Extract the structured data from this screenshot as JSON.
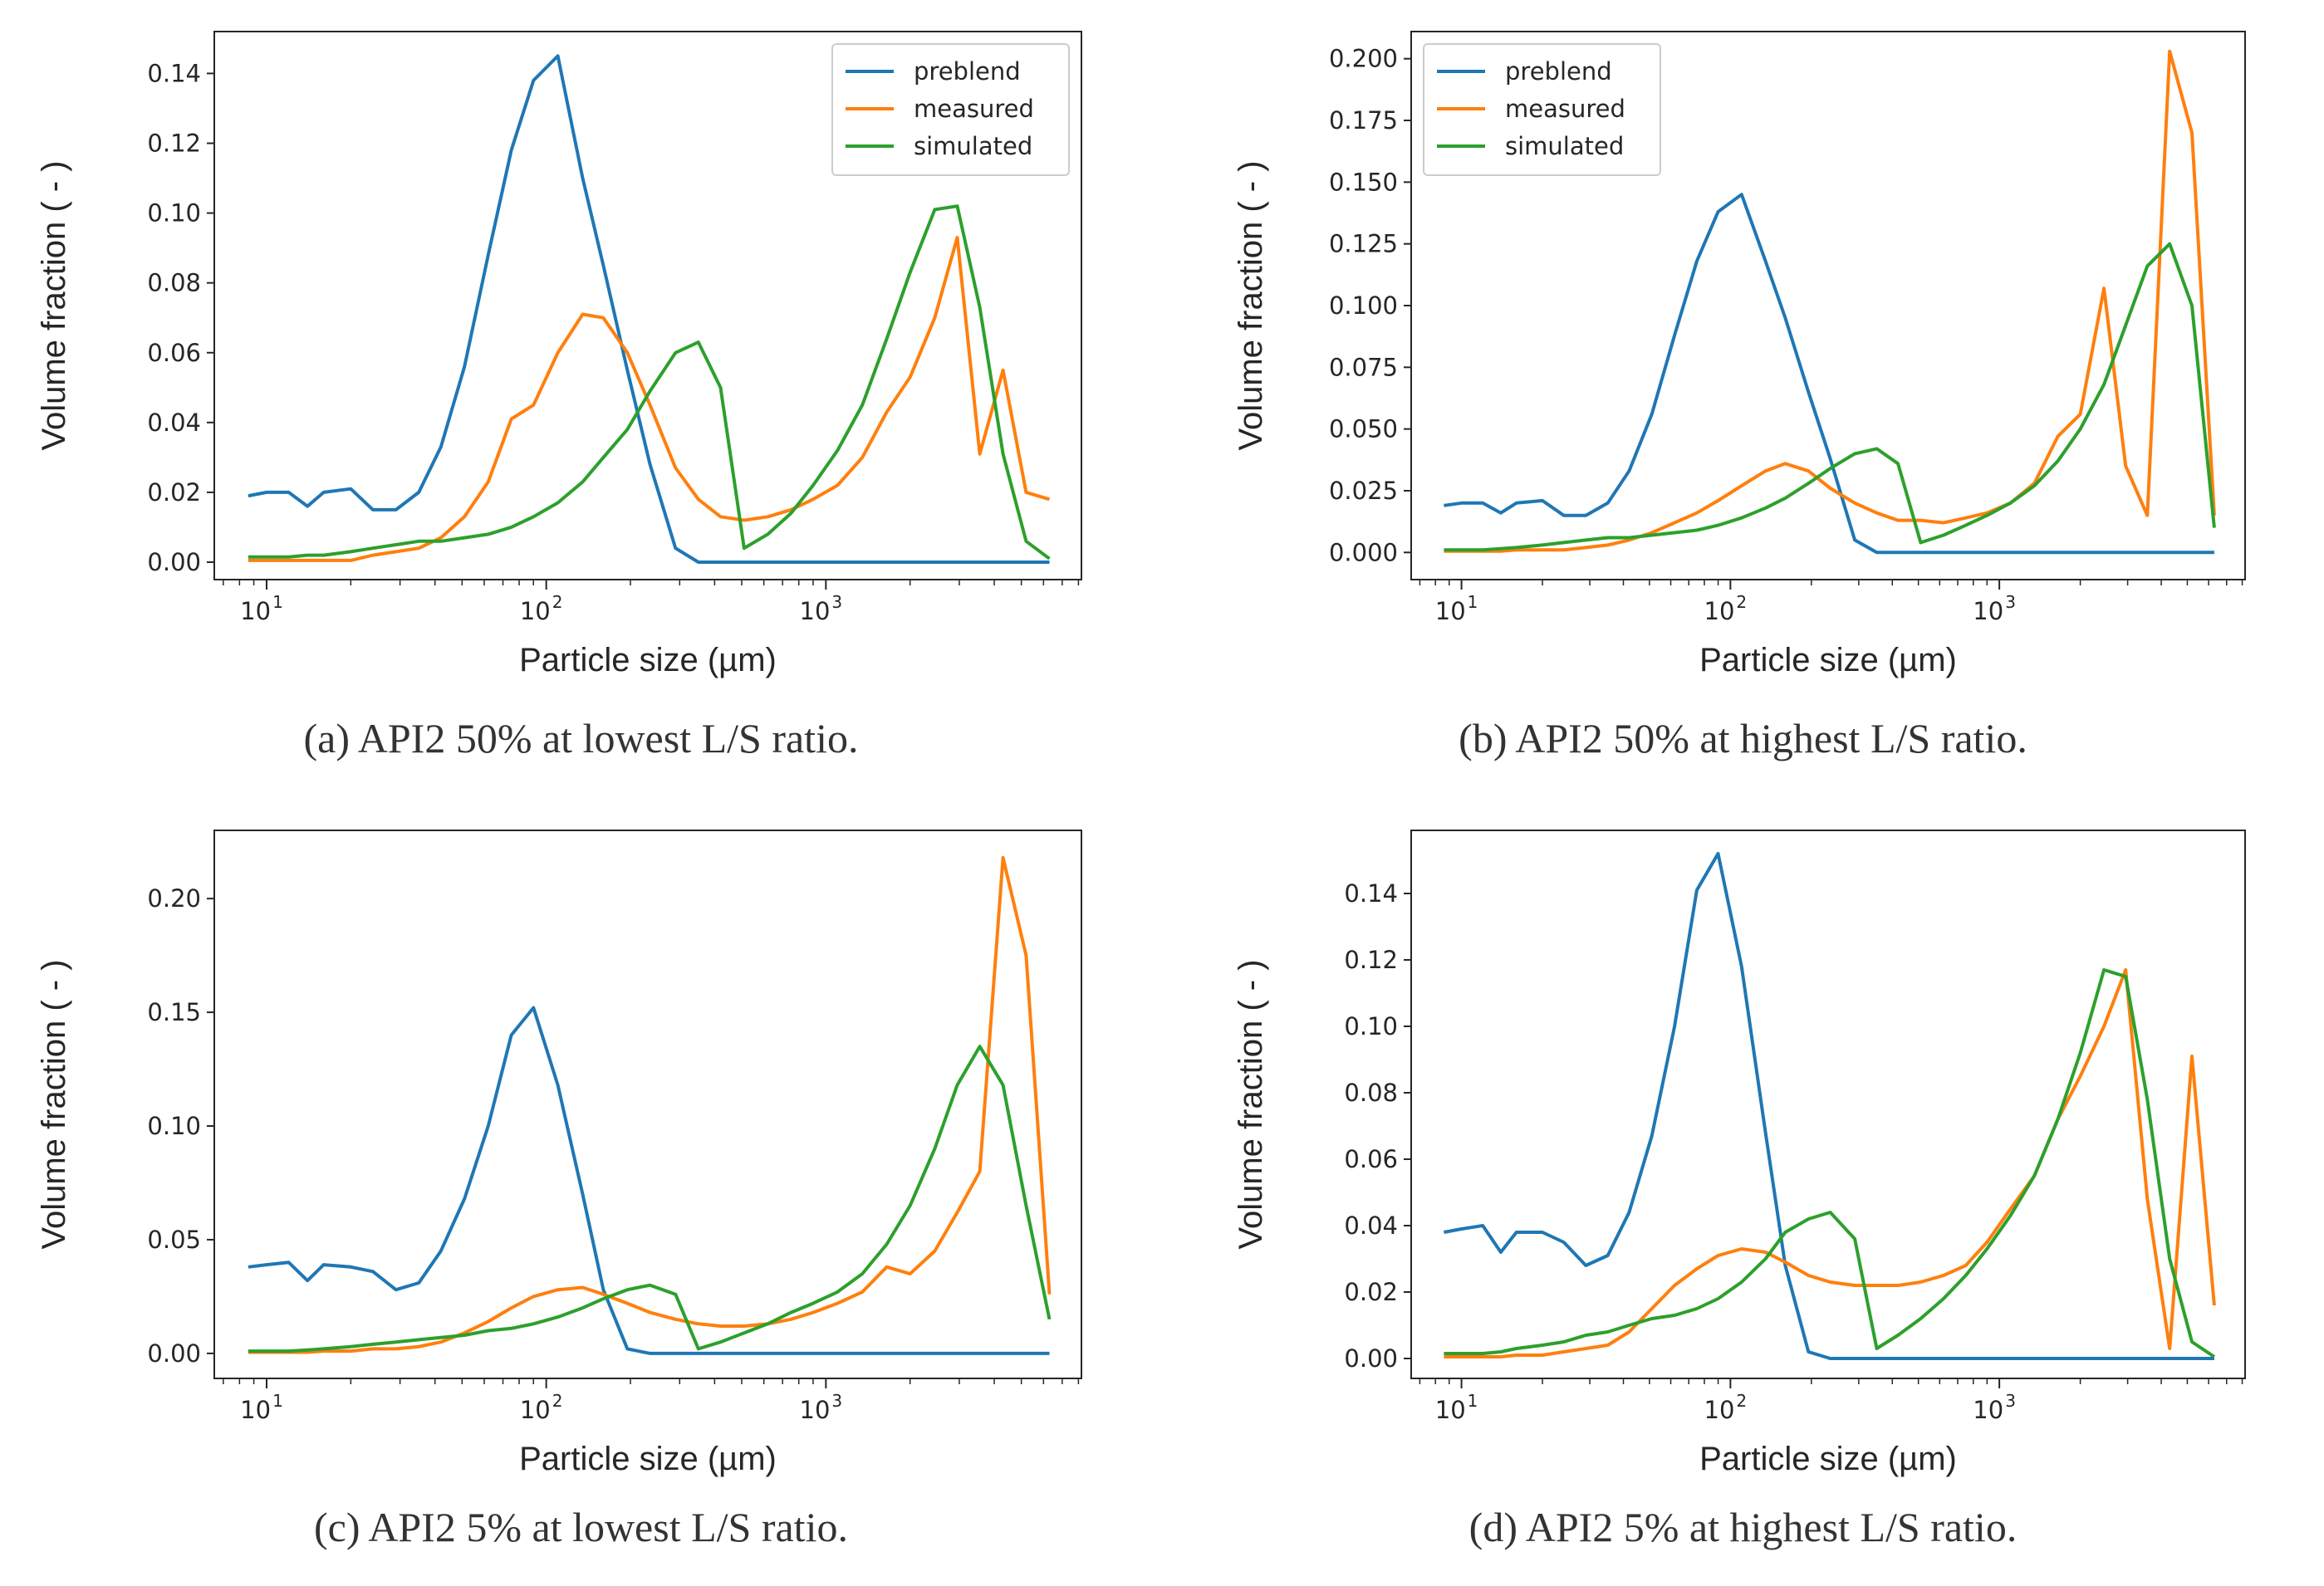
{
  "figure": {
    "captions": [
      "(a) API2 50% at lowest L/S ratio.",
      "(b) API2 50% at highest L/S ratio.",
      "(c) API2 5% at lowest L/S ratio.",
      "(d) API2 5% at highest L/S ratio."
    ]
  },
  "colors": {
    "preblend": "#1f77b4",
    "measured": "#ff7f0e",
    "simulated": "#2ca02c"
  },
  "chart_data": [
    {
      "type": "line",
      "caption": "(a) API2 50% at lowest L/S ratio.",
      "xlabel": "Particle size (µm)",
      "ylabel": "Volume fraction ( - )",
      "xscale": "log",
      "xlim": [
        6.5,
        8200
      ],
      "ylim": [
        -0.005,
        0.152
      ],
      "xticks": [
        {
          "value": 10,
          "label": "10",
          "exp": "1"
        },
        {
          "value": 100,
          "label": "10",
          "exp": "2"
        },
        {
          "value": 1000,
          "label": "10",
          "exp": "3"
        }
      ],
      "yticks": [
        {
          "value": 0,
          "label": "0.00"
        },
        {
          "value": 0.02,
          "label": "0.02"
        },
        {
          "value": 0.04,
          "label": "0.04"
        },
        {
          "value": 0.06,
          "label": "0.06"
        },
        {
          "value": 0.08,
          "label": "0.08"
        },
        {
          "value": 0.1,
          "label": "0.10"
        },
        {
          "value": 0.12,
          "label": "0.12"
        },
        {
          "value": 0.14,
          "label": "0.14"
        }
      ],
      "legend": {
        "show": true,
        "position": "top-right"
      },
      "x": [
        8.6,
        10.0,
        12.0,
        14.0,
        16.0,
        20.0,
        24.0,
        29.0,
        35.0,
        42.0,
        51.0,
        62.0,
        75.0,
        90.0,
        110.0,
        135.0,
        160.0,
        195.0,
        235.0,
        290.0,
        350.0,
        420.0,
        510.0,
        620.0,
        750.0,
        900.0,
        1100.0,
        1350.0,
        1650.0,
        2000.0,
        2450.0,
        2950.0,
        3550.0,
        4300.0,
        5200.0,
        6300.0
      ],
      "series": [
        {
          "name": "preblend",
          "color": "#1f77b4",
          "values": [
            0.019,
            0.02,
            0.02,
            0.016,
            0.02,
            0.021,
            0.015,
            0.015,
            0.02,
            0.033,
            0.056,
            0.088,
            0.118,
            0.138,
            0.145,
            0.11,
            0.085,
            0.055,
            0.028,
            0.004,
            0.0,
            0.0,
            0.0,
            0.0,
            0.0,
            0.0,
            0.0,
            0.0,
            0.0,
            0.0,
            0.0,
            0.0,
            0.0,
            0.0,
            0.0,
            0.0
          ]
        },
        {
          "name": "measured",
          "color": "#ff7f0e",
          "values": [
            0.0005,
            0.0005,
            0.0005,
            0.0005,
            0.0005,
            0.0005,
            0.002,
            0.003,
            0.004,
            0.007,
            0.013,
            0.023,
            0.041,
            0.045,
            0.06,
            0.071,
            0.07,
            0.06,
            0.045,
            0.027,
            0.018,
            0.013,
            0.012,
            0.013,
            0.015,
            0.018,
            0.022,
            0.03,
            0.043,
            0.053,
            0.07,
            0.093,
            0.031,
            0.055,
            0.02,
            0.018
          ]
        },
        {
          "name": "simulated",
          "color": "#2ca02c",
          "values": [
            0.0015,
            0.0015,
            0.0015,
            0.002,
            0.002,
            0.003,
            0.004,
            0.005,
            0.006,
            0.006,
            0.007,
            0.008,
            0.01,
            0.013,
            0.017,
            0.023,
            0.03,
            0.038,
            0.049,
            0.06,
            0.063,
            0.05,
            0.004,
            0.008,
            0.014,
            0.022,
            0.032,
            0.045,
            0.064,
            0.083,
            0.101,
            0.102,
            0.073,
            0.031,
            0.006,
            0.001
          ]
        }
      ]
    },
    {
      "type": "line",
      "caption": "(b) API2 50% at highest L/S ratio.",
      "xlabel": "Particle size (µm)",
      "ylabel": "Volume fraction ( - )",
      "xscale": "log",
      "xlim": [
        6.5,
        8200
      ],
      "ylim": [
        -0.011,
        0.211
      ],
      "xticks": [
        {
          "value": 10,
          "label": "10",
          "exp": "1"
        },
        {
          "value": 100,
          "label": "10",
          "exp": "2"
        },
        {
          "value": 1000,
          "label": "10",
          "exp": "3"
        }
      ],
      "yticks": [
        {
          "value": 0,
          "label": "0.000"
        },
        {
          "value": 0.025,
          "label": "0.025"
        },
        {
          "value": 0.05,
          "label": "0.050"
        },
        {
          "value": 0.075,
          "label": "0.075"
        },
        {
          "value": 0.1,
          "label": "0.100"
        },
        {
          "value": 0.125,
          "label": "0.125"
        },
        {
          "value": 0.15,
          "label": "0.150"
        },
        {
          "value": 0.175,
          "label": "0.175"
        },
        {
          "value": 0.2,
          "label": "0.200"
        }
      ],
      "legend": {
        "show": true,
        "position": "top-left"
      },
      "x": [
        8.6,
        10.0,
        12.0,
        14.0,
        16.0,
        20.0,
        24.0,
        29.0,
        35.0,
        42.0,
        51.0,
        62.0,
        75.0,
        90.0,
        110.0,
        135.0,
        160.0,
        195.0,
        235.0,
        290.0,
        350.0,
        420.0,
        510.0,
        620.0,
        750.0,
        900.0,
        1100.0,
        1350.0,
        1650.0,
        2000.0,
        2450.0,
        2950.0,
        3550.0,
        4300.0,
        5200.0,
        6300.0
      ],
      "series": [
        {
          "name": "preblend",
          "color": "#1f77b4",
          "values": [
            0.019,
            0.02,
            0.02,
            0.016,
            0.02,
            0.021,
            0.015,
            0.015,
            0.02,
            0.033,
            0.056,
            0.088,
            0.118,
            0.138,
            0.145,
            0.118,
            0.095,
            0.065,
            0.038,
            0.005,
            0.0,
            0.0,
            0.0,
            0.0,
            0.0,
            0.0,
            0.0,
            0.0,
            0.0,
            0.0,
            0.0,
            0.0,
            0.0,
            0.0,
            0.0,
            0.0
          ]
        },
        {
          "name": "measured",
          "color": "#ff7f0e",
          "values": [
            0.0005,
            0.0005,
            0.0005,
            0.0005,
            0.001,
            0.001,
            0.001,
            0.002,
            0.003,
            0.005,
            0.008,
            0.012,
            0.016,
            0.021,
            0.027,
            0.033,
            0.036,
            0.033,
            0.026,
            0.02,
            0.016,
            0.013,
            0.013,
            0.012,
            0.014,
            0.016,
            0.02,
            0.028,
            0.047,
            0.056,
            0.107,
            0.035,
            0.015,
            0.203,
            0.17,
            0.015
          ]
        },
        {
          "name": "simulated",
          "color": "#2ca02c",
          "values": [
            0.001,
            0.001,
            0.001,
            0.0015,
            0.002,
            0.003,
            0.004,
            0.005,
            0.006,
            0.006,
            0.007,
            0.008,
            0.009,
            0.011,
            0.014,
            0.018,
            0.022,
            0.028,
            0.034,
            0.04,
            0.042,
            0.036,
            0.004,
            0.007,
            0.011,
            0.015,
            0.02,
            0.027,
            0.037,
            0.05,
            0.068,
            0.092,
            0.116,
            0.125,
            0.1,
            0.01
          ]
        }
      ]
    },
    {
      "type": "line",
      "caption": "(c) API2 5% at lowest L/S ratio.",
      "xlabel": "Particle size (µm)",
      "ylabel": "Volume fraction ( - )",
      "xscale": "log",
      "xlim": [
        6.5,
        8200
      ],
      "ylim": [
        -0.011,
        0.23
      ],
      "xticks": [
        {
          "value": 10,
          "label": "10",
          "exp": "1"
        },
        {
          "value": 100,
          "label": "10",
          "exp": "2"
        },
        {
          "value": 1000,
          "label": "10",
          "exp": "3"
        }
      ],
      "yticks": [
        {
          "value": 0,
          "label": "0.00"
        },
        {
          "value": 0.05,
          "label": "0.05"
        },
        {
          "value": 0.1,
          "label": "0.10"
        },
        {
          "value": 0.15,
          "label": "0.15"
        },
        {
          "value": 0.2,
          "label": "0.20"
        }
      ],
      "legend": {
        "show": false
      },
      "x": [
        8.6,
        10.0,
        12.0,
        14.0,
        16.0,
        20.0,
        24.0,
        29.0,
        35.0,
        42.0,
        51.0,
        62.0,
        75.0,
        90.0,
        110.0,
        135.0,
        160.0,
        195.0,
        235.0,
        290.0,
        350.0,
        420.0,
        510.0,
        620.0,
        750.0,
        900.0,
        1100.0,
        1350.0,
        1650.0,
        2000.0,
        2450.0,
        2950.0,
        3550.0,
        4300.0,
        5200.0,
        6300.0
      ],
      "series": [
        {
          "name": "preblend",
          "color": "#1f77b4",
          "values": [
            0.038,
            0.039,
            0.04,
            0.032,
            0.039,
            0.038,
            0.036,
            0.028,
            0.031,
            0.045,
            0.068,
            0.1,
            0.14,
            0.152,
            0.118,
            0.07,
            0.028,
            0.002,
            0.0,
            0.0,
            0.0,
            0.0,
            0.0,
            0.0,
            0.0,
            0.0,
            0.0,
            0.0,
            0.0,
            0.0,
            0.0,
            0.0,
            0.0,
            0.0,
            0.0,
            0.0
          ]
        },
        {
          "name": "measured",
          "color": "#ff7f0e",
          "values": [
            0.0005,
            0.0005,
            0.0005,
            0.0005,
            0.001,
            0.001,
            0.002,
            0.002,
            0.003,
            0.005,
            0.009,
            0.014,
            0.02,
            0.025,
            0.028,
            0.029,
            0.026,
            0.022,
            0.018,
            0.015,
            0.013,
            0.012,
            0.012,
            0.013,
            0.015,
            0.018,
            0.022,
            0.027,
            0.038,
            0.035,
            0.045,
            0.062,
            0.08,
            0.218,
            0.175,
            0.026
          ]
        },
        {
          "name": "simulated",
          "color": "#2ca02c",
          "values": [
            0.001,
            0.001,
            0.001,
            0.0015,
            0.002,
            0.003,
            0.004,
            0.005,
            0.006,
            0.007,
            0.008,
            0.01,
            0.011,
            0.013,
            0.016,
            0.02,
            0.024,
            0.028,
            0.03,
            0.026,
            0.002,
            0.005,
            0.009,
            0.013,
            0.018,
            0.022,
            0.027,
            0.035,
            0.048,
            0.065,
            0.09,
            0.118,
            0.135,
            0.118,
            0.065,
            0.015
          ]
        }
      ]
    },
    {
      "type": "line",
      "caption": "(d) API2 5% at highest L/S ratio.",
      "xlabel": "Particle size (µm)",
      "ylabel": "Volume fraction ( - )",
      "xscale": "log",
      "xlim": [
        6.5,
        8200
      ],
      "ylim": [
        -0.006,
        0.159
      ],
      "xticks": [
        {
          "value": 10,
          "label": "10",
          "exp": "1"
        },
        {
          "value": 100,
          "label": "10",
          "exp": "2"
        },
        {
          "value": 1000,
          "label": "10",
          "exp": "3"
        }
      ],
      "yticks": [
        {
          "value": 0,
          "label": "0.00"
        },
        {
          "value": 0.02,
          "label": "0.02"
        },
        {
          "value": 0.04,
          "label": "0.04"
        },
        {
          "value": 0.06,
          "label": "0.06"
        },
        {
          "value": 0.08,
          "label": "0.08"
        },
        {
          "value": 0.1,
          "label": "0.10"
        },
        {
          "value": 0.12,
          "label": "0.12"
        },
        {
          "value": 0.14,
          "label": "0.14"
        }
      ],
      "legend": {
        "show": false
      },
      "x": [
        8.6,
        10.0,
        12.0,
        14.0,
        16.0,
        20.0,
        24.0,
        29.0,
        35.0,
        42.0,
        51.0,
        62.0,
        75.0,
        90.0,
        110.0,
        135.0,
        160.0,
        195.0,
        235.0,
        290.0,
        350.0,
        420.0,
        510.0,
        620.0,
        750.0,
        900.0,
        1100.0,
        1350.0,
        1650.0,
        2000.0,
        2450.0,
        2950.0,
        3550.0,
        4300.0,
        5200.0,
        6300.0
      ],
      "series": [
        {
          "name": "preblend",
          "color": "#1f77b4",
          "values": [
            0.038,
            0.039,
            0.04,
            0.032,
            0.038,
            0.038,
            0.035,
            0.028,
            0.031,
            0.044,
            0.067,
            0.1,
            0.141,
            0.152,
            0.118,
            0.068,
            0.028,
            0.002,
            0.0,
            0.0,
            0.0,
            0.0,
            0.0,
            0.0,
            0.0,
            0.0,
            0.0,
            0.0,
            0.0,
            0.0,
            0.0,
            0.0,
            0.0,
            0.0,
            0.0,
            0.0
          ]
        },
        {
          "name": "measured",
          "color": "#ff7f0e",
          "values": [
            0.0005,
            0.0005,
            0.0005,
            0.0005,
            0.001,
            0.001,
            0.002,
            0.003,
            0.004,
            0.008,
            0.015,
            0.022,
            0.027,
            0.031,
            0.033,
            0.032,
            0.029,
            0.025,
            0.023,
            0.022,
            0.022,
            0.022,
            0.023,
            0.025,
            0.028,
            0.035,
            0.045,
            0.055,
            0.072,
            0.085,
            0.1,
            0.117,
            0.048,
            0.003,
            0.091,
            0.016
          ]
        },
        {
          "name": "simulated",
          "color": "#2ca02c",
          "values": [
            0.0015,
            0.0015,
            0.0015,
            0.002,
            0.003,
            0.004,
            0.005,
            0.007,
            0.008,
            0.01,
            0.012,
            0.013,
            0.015,
            0.018,
            0.023,
            0.03,
            0.038,
            0.042,
            0.044,
            0.036,
            0.003,
            0.007,
            0.012,
            0.018,
            0.025,
            0.033,
            0.043,
            0.055,
            0.072,
            0.092,
            0.117,
            0.115,
            0.078,
            0.03,
            0.005,
            0.0005
          ]
        }
      ]
    }
  ]
}
